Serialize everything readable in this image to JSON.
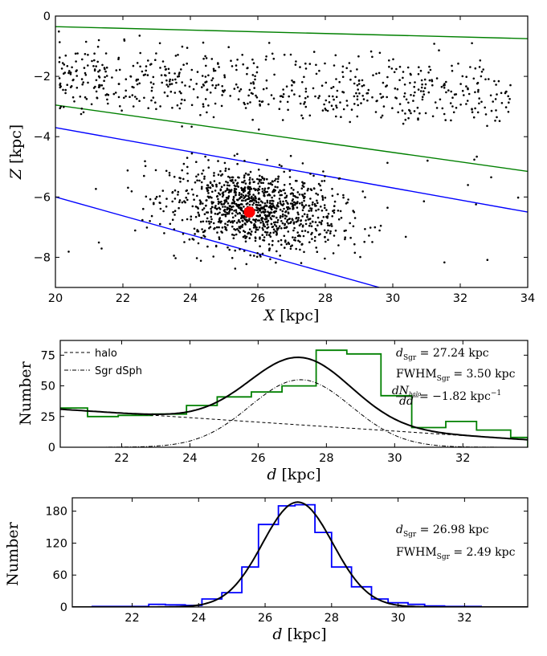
{
  "chart_data": [
    {
      "type": "scatter",
      "xlabel": "X [kpc]",
      "ylabel": "Z [kpc]",
      "xlim": [
        20,
        34
      ],
      "ylim": [
        -9,
        0
      ],
      "xticks": [
        "20",
        "22",
        "24",
        "26",
        "28",
        "30",
        "32",
        "34"
      ],
      "yticks": [
        "0",
        "−2",
        "−4",
        "−6",
        "−8"
      ],
      "lines": [
        {
          "name": "upper-band-top",
          "color": "#008000",
          "x": [
            20,
            34
          ],
          "y": [
            -0.35,
            -0.75
          ]
        },
        {
          "name": "upper-band-bottom",
          "color": "#008000",
          "x": [
            20,
            34
          ],
          "y": [
            -2.95,
            -5.15
          ]
        },
        {
          "name": "lower-band-top",
          "color": "#0000ff",
          "x": [
            20,
            34
          ],
          "y": [
            -3.7,
            -6.5
          ]
        },
        {
          "name": "lower-band-bottom",
          "color": "#0000ff",
          "x": [
            20,
            29.6
          ],
          "y": [
            -6.0,
            -9.0
          ]
        }
      ],
      "clusters": [
        {
          "name": "upper-stars",
          "count": 640,
          "x_range": [
            20.1,
            33.5
          ],
          "y_mean": -2.1,
          "y_sd": 0.65
        },
        {
          "name": "lower-stars",
          "count": 1100,
          "x_mean": 25.9,
          "x_sd": 1.25,
          "y_mean": -6.4,
          "y_sd": 0.65
        }
      ],
      "highlight": {
        "x": 25.75,
        "y": -6.5,
        "color": "#ff0000"
      }
    },
    {
      "type": "histogram",
      "xlabel": "d [kpc]",
      "ylabel": "Number",
      "xlim": [
        20.2,
        33.9
      ],
      "ylim": [
        0,
        87
      ],
      "xticks": [
        "22",
        "24",
        "26",
        "28",
        "30",
        "32"
      ],
      "yticks": [
        "0",
        "25",
        "50",
        "75"
      ],
      "bin_edges": [
        20.2,
        21.0,
        21.9,
        22.9,
        23.9,
        24.8,
        25.8,
        26.7,
        27.7,
        28.6,
        29.6,
        30.5,
        31.5,
        32.4,
        33.4,
        33.9
      ],
      "counts": [
        32,
        25,
        26,
        27,
        34,
        41,
        45,
        50,
        79,
        76,
        42,
        16,
        21,
        14,
        8
      ],
      "hist_color": "#008000",
      "total_fit": {
        "mu": 27.24,
        "sigma": 1.486,
        "amplitude": 55,
        "halo_start": 31.0,
        "halo_slope": -1.82
      },
      "legend": [
        {
          "label": "halo",
          "style": "dashed"
        },
        {
          "label": "Sgr dSph",
          "style": "dashdot"
        }
      ],
      "annotations": {
        "d_symbol": "d",
        "d_sub": "Sgr",
        "d_value": " =  27.24 kpc",
        "fwhm_symbol": "FWHM",
        "fwhm_sub": "Sgr",
        "fwhm_value": " = 3.50 kpc",
        "slope_num": "dN",
        "slope_num_sub": "halo",
        "slope_den": "dd",
        "slope_value": " =   −1.82 kpc",
        "slope_unit_sup": "−1"
      }
    },
    {
      "type": "histogram",
      "xlabel": "d [kpc]",
      "ylabel": "Number",
      "xlim": [
        20.2,
        33.9
      ],
      "ylim": [
        0,
        205
      ],
      "xticks": [
        "22",
        "24",
        "26",
        "28",
        "30",
        "32"
      ],
      "yticks": [
        "0",
        "60",
        "120",
        "180"
      ],
      "bin_edges": [
        20.8,
        21.4,
        21.9,
        22.5,
        23.0,
        23.6,
        24.1,
        24.7,
        25.3,
        25.8,
        26.4,
        26.9,
        27.5,
        28.0,
        28.6,
        29.2,
        29.7,
        30.3,
        30.8,
        31.4,
        31.9,
        32.5
      ],
      "counts": [
        1,
        1,
        1,
        5,
        4,
        3,
        15,
        27,
        75,
        155,
        190,
        192,
        140,
        75,
        38,
        15,
        8,
        5,
        2,
        1,
        1
      ],
      "hist_color": "#0000ff",
      "fit": {
        "mu": 26.98,
        "sigma": 1.057,
        "peak": 197
      },
      "annotations": {
        "d_symbol": "d",
        "d_sub": "Sgr",
        "d_value": " = 26.98 kpc",
        "fwhm_symbol": "FWHM",
        "fwhm_sub": "Sgr",
        "fwhm_value": " = 2.49 kpc"
      }
    }
  ]
}
